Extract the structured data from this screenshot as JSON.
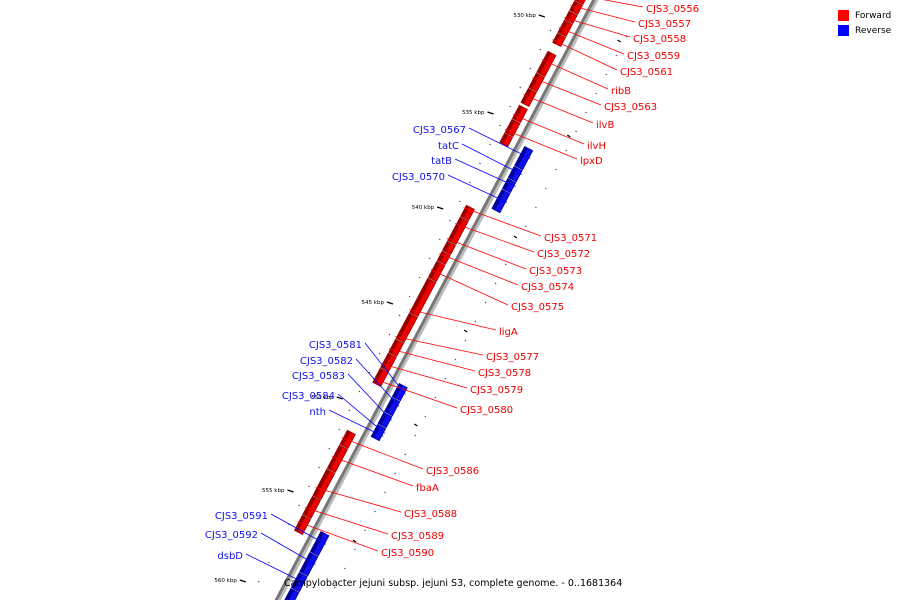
{
  "legend": {
    "items": [
      {
        "label": "Forward",
        "color": "#ff0000"
      },
      {
        "label": "Reverse",
        "color": "#0000ff"
      }
    ]
  },
  "caption": "Campylobacter jejuni subsp. jejuni S3, complete genome. - 0..1681364",
  "colors": {
    "forward": "#ee0000",
    "reverse": "#1010ee",
    "backbone": "#777777"
  },
  "ticks": [
    "530 kbp",
    "535 kbp",
    "540 kbp",
    "545 kbp",
    "550 kbp",
    "555 kbp",
    "560 kbp"
  ],
  "forward_genes": [
    "CJS3_0556",
    "CJS3_0557",
    "CJS3_0558",
    "CJS3_0559",
    "CJS3_0561",
    "ribB",
    "CJS3_0563",
    "ilvB",
    "ilvH",
    "lpxD",
    "CJS3_0571",
    "CJS3_0572",
    "CJS3_0573",
    "CJS3_0574",
    "CJS3_0575",
    "ligA",
    "CJS3_0577",
    "CJS3_0578",
    "CJS3_0579",
    "CJS3_0580",
    "CJS3_0586",
    "fbaA",
    "CJS3_0588",
    "CJS3_0589",
    "CJS3_0590"
  ],
  "reverse_genes": [
    "CJS3_0567",
    "tatC",
    "tatB",
    "CJS3_0570",
    "CJS3_0581",
    "CJS3_0582",
    "CJS3_0583",
    "CJS3_0584",
    "nth",
    "CJS3_0591",
    "CJS3_0592",
    "dsbD"
  ]
}
